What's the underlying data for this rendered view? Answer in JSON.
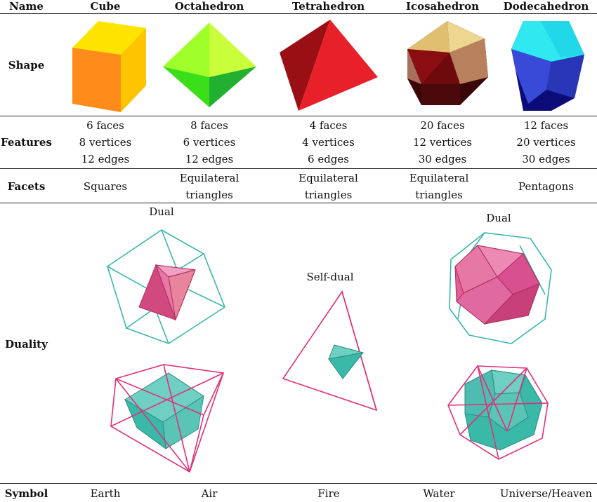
{
  "header": {
    "name": "Name",
    "columns": [
      "Cube",
      "Octahedron",
      "Tetrahedron",
      "Icosahedron",
      "Dodecahedron"
    ]
  },
  "rows": {
    "shape": "Shape",
    "features": "Features",
    "facets": "Facets",
    "duality": "Duality",
    "symbol": "Symbol"
  },
  "features": [
    [
      "6 faces",
      "8 vertices",
      "12 edges"
    ],
    [
      "8 faces",
      "6 vertices",
      "12 edges"
    ],
    [
      "4 faces",
      "4 vertices",
      "6 edges"
    ],
    [
      "20 faces",
      "12 vertices",
      "30 edges"
    ],
    [
      "12 faces",
      "20 vertices",
      "30 edges"
    ]
  ],
  "facets": [
    [
      "Squares"
    ],
    [
      "Equilateral",
      "triangles"
    ],
    [
      "Equilateral",
      "triangles"
    ],
    [
      "Equilateral",
      "triangles"
    ],
    [
      "Pentagons"
    ]
  ],
  "duality_labels": {
    "left": "Dual",
    "middle": "Self-dual",
    "right": "Dual"
  },
  "symbols": [
    "Earth",
    "Air",
    "Fire",
    "Water",
    "Universe/Heaven"
  ],
  "colors": {
    "cube": [
      "#ffe400",
      "#ff8c1a",
      "#ffc400"
    ],
    "octahedron": [
      "#a0ff2a",
      "#3adf1a",
      "#22b030",
      "#169a2a"
    ],
    "tetrahedron": [
      "#e8202a",
      "#9a0f14",
      "#c8161e"
    ],
    "icosahedron": [
      "#e8cc80",
      "#8a0d12",
      "#b8805c",
      "#3a0608"
    ],
    "dodecahedron": [
      "#30e8f0",
      "#3a4ad8",
      "#0c0c78"
    ],
    "dual_wire_cyan": "#3ab6b0",
    "dual_wire_pink": "#e0307a",
    "dual_solid_pink": "#e05e96",
    "dual_solid_teal": "#3ab8a8"
  }
}
